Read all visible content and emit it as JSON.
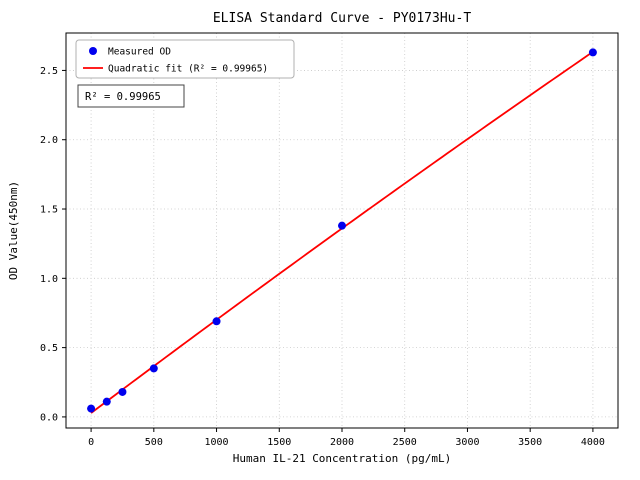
{
  "figure": {
    "background": "#ffffff"
  },
  "chart_data": {
    "type": "scatter",
    "title": "ELISA Standard Curve - PY0173Hu-T",
    "xlabel": "Human IL-21 Concentration (pg/mL)",
    "ylabel": "OD Value(450nm)",
    "x": [
      0,
      125,
      250,
      500,
      1000,
      2000,
      4000
    ],
    "y": [
      0.06,
      0.11,
      0.18,
      0.35,
      0.69,
      1.38,
      2.63
    ],
    "xlim": [
      -200,
      4200
    ],
    "ylim": [
      -0.08,
      2.77
    ],
    "xticks": [
      0,
      500,
      1000,
      1500,
      2000,
      2500,
      3000,
      3500,
      4000
    ],
    "yticks": [
      0.0,
      0.5,
      1.0,
      1.5,
      2.0,
      2.5
    ],
    "grid": true,
    "grid_color": "#c8c8c8",
    "point_color": "#0000ee",
    "line_color": "#ff0000",
    "legend": {
      "position": "upper-left",
      "entries": [
        {
          "marker": "point",
          "label": "Measured OD"
        },
        {
          "marker": "line",
          "label": "Quadratic fit (R² = 0.99965)"
        }
      ]
    },
    "annotation": "R² = 0.99965",
    "fit": {
      "kind": "quadratic",
      "r_squared": "0.99965"
    }
  }
}
